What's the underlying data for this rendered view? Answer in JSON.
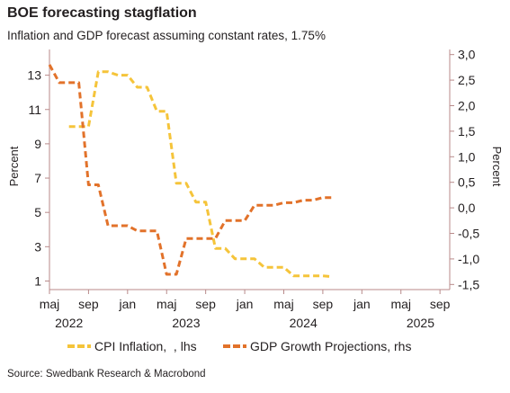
{
  "header": {
    "title": "BOE forecasting stagflation",
    "subtitle": "Inflation and GDP forecast assuming constant rates, 1.75%"
  },
  "footer": {
    "source": "Source: Swedbank Research & Macrobond"
  },
  "colors": {
    "cpi": "#f5c43a",
    "gdp": "#e2722a",
    "axis": "#b88a8a",
    "text": "#231f20"
  },
  "chart_data": {
    "type": "line",
    "title": "BOE forecasting stagflation",
    "ylabel_left": "Percent",
    "ylabel_right": "Percent",
    "ylim_left": [
      0.5,
      14.5
    ],
    "ylim_right": [
      -1.6,
      3.1
    ],
    "yticks_left": [
      1,
      3,
      5,
      7,
      9,
      11,
      13
    ],
    "yticks_right": [
      -1.5,
      -1.0,
      -0.5,
      0.0,
      0.5,
      1.0,
      1.5,
      2.0,
      2.5,
      3.0
    ],
    "yticks_right_labels": [
      "-1,5",
      "-1,0",
      "-0,5",
      "0,0",
      "0,5",
      "1,0",
      "1,5",
      "2,0",
      "2,5",
      "3,0"
    ],
    "xlim": [
      "2022-05",
      "2025-10"
    ],
    "xticks": [
      {
        "x": "2022-05",
        "label": "maj"
      },
      {
        "x": "2022-09",
        "label": "sep"
      },
      {
        "x": "2023-01",
        "label": "jan"
      },
      {
        "x": "2023-05",
        "label": "maj"
      },
      {
        "x": "2023-09",
        "label": "sep"
      },
      {
        "x": "2024-01",
        "label": "jan"
      },
      {
        "x": "2024-05",
        "label": "maj"
      },
      {
        "x": "2024-09",
        "label": "sep"
      },
      {
        "x": "2025-01",
        "label": "jan"
      },
      {
        "x": "2025-05",
        "label": "maj"
      },
      {
        "x": "2025-09",
        "label": "sep"
      }
    ],
    "year_labels": [
      {
        "x": "2022-07",
        "label": "2022"
      },
      {
        "x": "2023-07",
        "label": "2023"
      },
      {
        "x": "2024-07",
        "label": "2024"
      },
      {
        "x": "2025-07",
        "label": "2025"
      }
    ],
    "grid": false,
    "legend_placement": "bottom",
    "series": [
      {
        "name": "CPI Inflation,  , lhs",
        "axis": "left",
        "step": true,
        "points": [
          [
            "2022-07",
            10.0
          ],
          [
            "2022-08",
            10.0
          ],
          [
            "2022-09",
            10.0
          ],
          [
            "2022-10",
            13.2
          ],
          [
            "2022-11",
            13.2
          ],
          [
            "2022-12",
            13.0
          ],
          [
            "2023-01",
            13.0
          ],
          [
            "2023-02",
            12.3
          ],
          [
            "2023-03",
            12.3
          ],
          [
            "2023-04",
            10.9
          ],
          [
            "2023-05",
            10.9
          ],
          [
            "2023-06",
            6.7
          ],
          [
            "2023-07",
            6.7
          ],
          [
            "2023-08",
            5.6
          ],
          [
            "2023-09",
            5.6
          ],
          [
            "2023-10",
            2.9
          ],
          [
            "2023-11",
            2.9
          ],
          [
            "2023-12",
            2.3
          ],
          [
            "2024-01",
            2.3
          ],
          [
            "2024-02",
            2.3
          ],
          [
            "2024-03",
            1.8
          ],
          [
            "2024-04",
            1.8
          ],
          [
            "2024-05",
            1.8
          ],
          [
            "2024-06",
            1.3
          ],
          [
            "2024-07",
            1.3
          ],
          [
            "2024-08",
            1.3
          ],
          [
            "2024-09",
            1.3
          ],
          [
            "2024-10",
            1.25
          ]
        ]
      },
      {
        "name": "GDP Growth Projections, rhs",
        "axis": "right",
        "step": true,
        "points": [
          [
            "2022-05",
            2.8
          ],
          [
            "2022-06",
            2.45
          ],
          [
            "2022-07",
            2.45
          ],
          [
            "2022-08",
            2.45
          ],
          [
            "2022-09",
            0.45
          ],
          [
            "2022-10",
            0.45
          ],
          [
            "2022-11",
            -0.35
          ],
          [
            "2022-12",
            -0.35
          ],
          [
            "2023-01",
            -0.35
          ],
          [
            "2023-02",
            -0.45
          ],
          [
            "2023-03",
            -0.45
          ],
          [
            "2023-04",
            -0.45
          ],
          [
            "2023-05",
            -1.3
          ],
          [
            "2023-06",
            -1.3
          ],
          [
            "2023-07",
            -0.6
          ],
          [
            "2023-08",
            -0.6
          ],
          [
            "2023-09",
            -0.6
          ],
          [
            "2023-10",
            -0.6
          ],
          [
            "2023-11",
            -0.25
          ],
          [
            "2023-12",
            -0.25
          ],
          [
            "2024-01",
            -0.25
          ],
          [
            "2024-02",
            0.05
          ],
          [
            "2024-03",
            0.05
          ],
          [
            "2024-04",
            0.05
          ],
          [
            "2024-05",
            0.1
          ],
          [
            "2024-06",
            0.1
          ],
          [
            "2024-07",
            0.15
          ],
          [
            "2024-08",
            0.15
          ],
          [
            "2024-09",
            0.2
          ],
          [
            "2024-10",
            0.2
          ]
        ]
      }
    ]
  }
}
